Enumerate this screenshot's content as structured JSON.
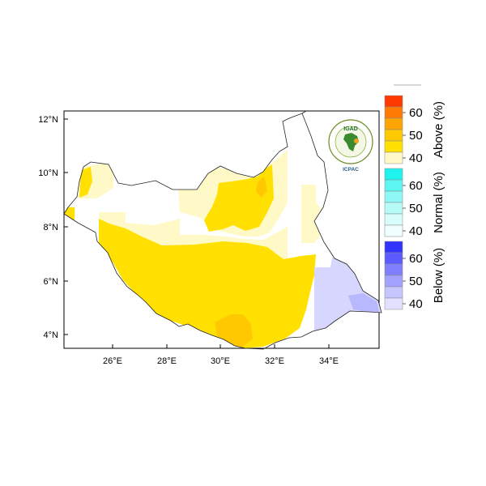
{
  "map": {
    "x_ticks": [
      "26°E",
      "28°E",
      "30°E",
      "32°E",
      "34°E"
    ],
    "y_ticks": [
      "12°N",
      "10°N",
      "8°N",
      "6°N",
      "4°N"
    ],
    "logo": {
      "text_top": "IGAD",
      "text_bottom": "ICPAC"
    }
  },
  "legend": {
    "categories": [
      {
        "title": "Above (%)",
        "labels": [
          "60",
          "50",
          "40"
        ],
        "colors": [
          "#ff3a00",
          "#ff7a00",
          "#ffa500",
          "#ffc800",
          "#ffe000",
          "#fff9c8"
        ]
      },
      {
        "title": "Normal (%)",
        "labels": [
          "60",
          "50",
          "40"
        ],
        "colors": [
          "#1ef3f0",
          "#5cf5f2",
          "#8ef8f5",
          "#b6fbf8",
          "#d8fdfb",
          "#effefe"
        ]
      },
      {
        "title": "Below (%)",
        "labels": [
          "60",
          "50",
          "40"
        ],
        "colors": [
          "#3333ff",
          "#5b5bff",
          "#8080ff",
          "#a3a3ff",
          "#c6c6ff",
          "#e1e1ff"
        ]
      }
    ]
  }
}
